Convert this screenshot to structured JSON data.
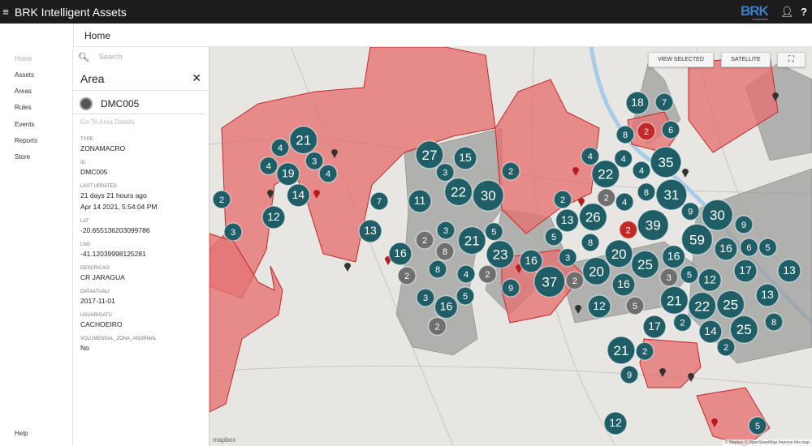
{
  "app": {
    "title": "BRK Intelligent Assets",
    "logo": "BRK",
    "logo_sub": "ambiental",
    "menu_icon": "hamburger-icon",
    "user_icon": "user-icon",
    "help_icon": "help-icon"
  },
  "breadcrumb": "Home",
  "nav": {
    "items": [
      "Home",
      "Assets",
      "Areas",
      "Rules",
      "Events",
      "Reports",
      "Store"
    ],
    "help": "Help"
  },
  "panel": {
    "search_placeholder": "Search",
    "title": "Area",
    "area_name": "DMC005",
    "details_link": "Go To Area Details",
    "fields": [
      {
        "label": "TYPE",
        "value": "ZONAMACRO"
      },
      {
        "label": "ID",
        "value": "DMC005"
      },
      {
        "label": "LAST UPDATED",
        "value": "21 days 21 hours ago",
        "value2": "Apr 14 2021, 5:54:04 PM"
      },
      {
        "label": "LAT",
        "value": "-20.655136203099786"
      },
      {
        "label": "LNG",
        "value": "-41.12039998125281"
      },
      {
        "label": "DESCRICAO",
        "value": "CR JARAGUA"
      },
      {
        "label": "DATAATUALI",
        "value": "2017-11-01"
      },
      {
        "label": "USUARIOATU",
        "value": "CACHOEIRO"
      },
      {
        "label": "VOLUMENSAL_ZONA_ANORMAL",
        "value": "No"
      }
    ]
  },
  "map": {
    "buttons": {
      "view_selected": "VIEW SELECTED",
      "satellite": "SATELLITE"
    },
    "attribution": "© Mapbox © OpenStreetMap Improve this map",
    "mapbox": "mapbox",
    "colors": {
      "cluster": "#1f5e66",
      "cluster_gray": "#6f6f6f",
      "cluster_red": "#c62828",
      "area_red": "#e57373",
      "area_gray": "#9e9e9e"
    },
    "clusters": [
      21,
      4,
      3,
      4,
      4,
      19,
      14,
      2,
      3,
      12,
      7,
      11,
      13,
      27,
      15,
      3,
      2,
      22,
      30,
      2,
      3,
      8,
      21,
      5,
      23,
      16,
      8,
      2,
      4,
      2,
      16,
      9,
      3,
      5,
      16,
      2,
      18,
      7,
      8,
      2,
      6,
      4,
      4,
      35,
      4,
      22,
      2,
      2,
      26,
      4,
      8,
      31,
      13,
      39,
      2,
      9,
      30,
      59,
      9,
      16,
      6,
      17,
      5,
      13,
      5,
      8,
      3,
      20,
      25,
      16,
      3,
      5,
      12,
      37,
      2,
      20,
      16,
      21,
      22,
      13,
      25,
      12,
      5,
      17,
      2,
      14,
      25,
      8,
      2,
      21,
      2,
      9,
      5,
      12
    ]
  }
}
